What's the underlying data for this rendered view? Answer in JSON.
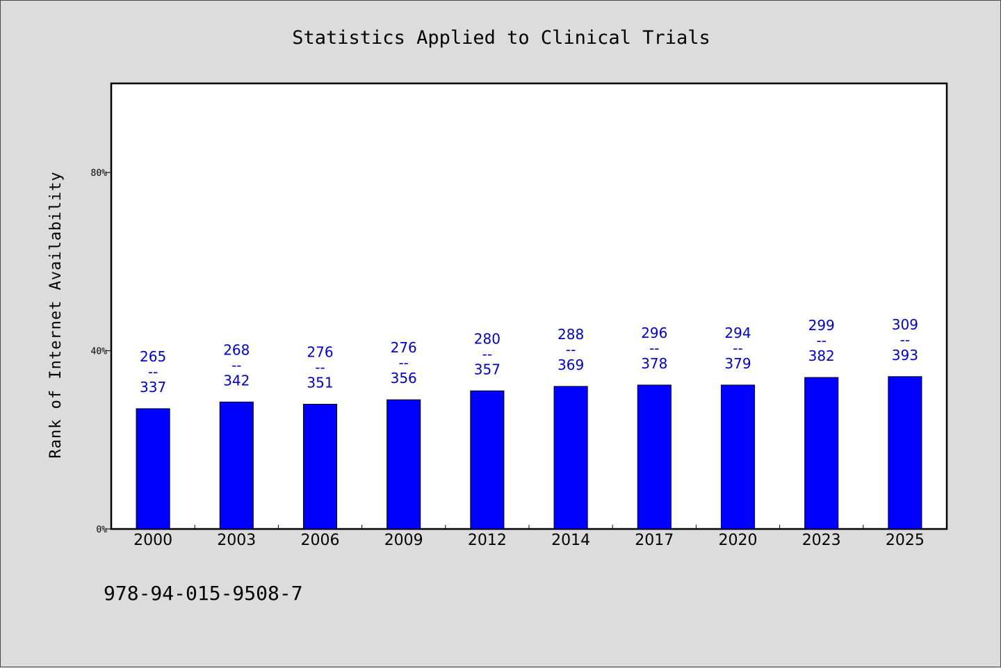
{
  "chart_data": {
    "type": "bar",
    "title": "Statistics Applied to Clinical Trials",
    "xlabel": "",
    "ylabel": "Rank of Internet Availability",
    "ylim": [
      0,
      100
    ],
    "ytick_values": [
      0,
      40,
      80
    ],
    "ytick_labels": [
      "0%",
      "40%",
      "80%"
    ],
    "categories": [
      "2000",
      "2003",
      "2006",
      "2009",
      "2012",
      "2014",
      "2017",
      "2020",
      "2023",
      "2025"
    ],
    "values": [
      27.0,
      28.5,
      28.0,
      29.0,
      31.0,
      32.0,
      32.3,
      32.3,
      34.0,
      34.2
    ],
    "bar_labels": [
      [
        "265",
        "--",
        "337"
      ],
      [
        "268",
        "--",
        "342"
      ],
      [
        "276",
        "--",
        "351"
      ],
      [
        "276",
        "--",
        "356"
      ],
      [
        "280",
        "--",
        "357"
      ],
      [
        "288",
        "--",
        "369"
      ],
      [
        "296",
        "--",
        "378"
      ],
      [
        "294",
        "--",
        "379"
      ],
      [
        "299",
        "--",
        "382"
      ],
      [
        "309",
        "--",
        "393"
      ]
    ],
    "bar_color": "#0000ff",
    "label_color": "#0000cc",
    "grid": false,
    "legend": "none"
  },
  "footer": {
    "isbn": "978-94-015-9508-7"
  }
}
